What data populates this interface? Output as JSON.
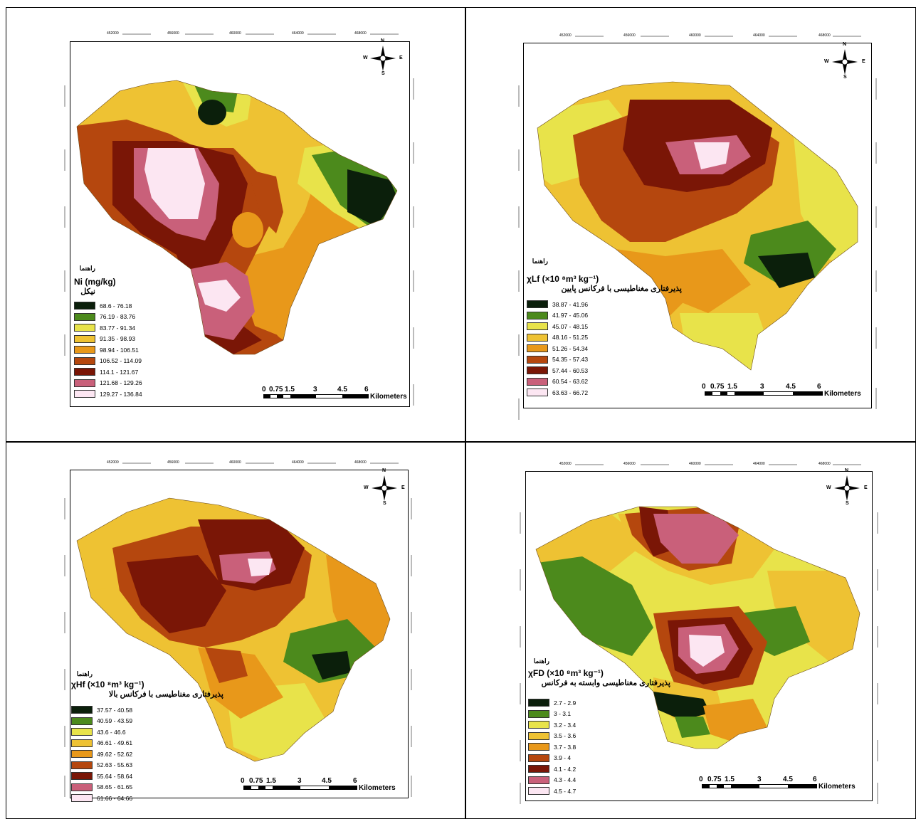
{
  "axis_ticks": {
    "top": [
      "452000",
      "456000",
      "460000",
      "464000",
      "468000"
    ],
    "side": [
      "3658000",
      "3654000",
      "3650000",
      "3646000",
      "3642000",
      "3638000"
    ]
  },
  "compass": {
    "n": "N",
    "s": "S",
    "w": "W",
    "e": "E"
  },
  "scalebar": {
    "labels": [
      "0",
      "0.75",
      "1.5",
      "3",
      "4.5",
      "6"
    ],
    "unit": "Kilometers"
  },
  "panels": [
    {
      "legend_heading": "راهنما",
      "variable": "Ni (mg/kg)",
      "variable_fa": "نیکل",
      "classes": [
        {
          "label": "68.6 - 76.18",
          "color": "#0b1f0b"
        },
        {
          "label": "76.19 - 83.76",
          "color": "#4c8a1c"
        },
        {
          "label": "83.77 - 91.34",
          "color": "#e8e34a"
        },
        {
          "label": "91.35 - 98.93",
          "color": "#eec233"
        },
        {
          "label": "98.94 - 106.51",
          "color": "#e8981a"
        },
        {
          "label": "106.52 - 114.09",
          "color": "#b5470e"
        },
        {
          "label": "114.1 - 121.67",
          "color": "#7a1606"
        },
        {
          "label": "121.68 - 129.26",
          "color": "#c9607a"
        },
        {
          "label": "129.27 - 136.84",
          "color": "#fce6f2"
        }
      ]
    },
    {
      "legend_heading": "راهنما",
      "variable": "χLf (×10 ⁸m³ kg⁻¹)",
      "variable_fa": "پذیرفتاری مغناطیسی با فرکانس پایین",
      "classes": [
        {
          "label": "38.87 - 41.96",
          "color": "#0b1f0b"
        },
        {
          "label": "41.97 - 45.06",
          "color": "#4c8a1c"
        },
        {
          "label": "45.07 - 48.15",
          "color": "#e8e34a"
        },
        {
          "label": "48.16 - 51.25",
          "color": "#eec233"
        },
        {
          "label": "51.26 - 54.34",
          "color": "#e8981a"
        },
        {
          "label": "54.35 - 57.43",
          "color": "#b5470e"
        },
        {
          "label": "57.44 - 60.53",
          "color": "#7a1606"
        },
        {
          "label": "60.54 - 63.62",
          "color": "#c9607a"
        },
        {
          "label": "63.63 - 66.72",
          "color": "#fce6f2"
        }
      ]
    },
    {
      "legend_heading": "راهنما",
      "variable": "χHf (×10 ⁸m³ kg⁻¹)",
      "variable_fa": "پذیرفتاری مغناطیسی با فرکانس بالا",
      "classes": [
        {
          "label": "37.57 - 40.58",
          "color": "#0b1f0b"
        },
        {
          "label": "40.59 - 43.59",
          "color": "#4c8a1c"
        },
        {
          "label": "43.6 - 46.6",
          "color": "#e8e34a"
        },
        {
          "label": "46.61 - 49.61",
          "color": "#eec233"
        },
        {
          "label": "49.62 - 52.62",
          "color": "#e8981a"
        },
        {
          "label": "52.63 - 55.63",
          "color": "#b5470e"
        },
        {
          "label": "55.64 - 58.64",
          "color": "#7a1606"
        },
        {
          "label": "58.65 - 61.65",
          "color": "#c9607a"
        },
        {
          "label": "61.66 - 64.66",
          "color": "#fce6f2"
        }
      ]
    },
    {
      "legend_heading": "راهنما",
      "variable": "χFD (×10 ⁸m³ kg⁻¹)",
      "variable_fa": "پذیرفتاری مغناطیسی وابسته به فرکانس",
      "classes": [
        {
          "label": "2.7 - 2.9",
          "color": "#0b1f0b"
        },
        {
          "label": "3 - 3.1",
          "color": "#4c8a1c"
        },
        {
          "label": "3.2 - 3.4",
          "color": "#e8e34a"
        },
        {
          "label": "3.5 - 3.6",
          "color": "#eec233"
        },
        {
          "label": "3.7 - 3.8",
          "color": "#e8981a"
        },
        {
          "label": "3.9 - 4",
          "color": "#b5470e"
        },
        {
          "label": "4.1 - 4.2",
          "color": "#7a1606"
        },
        {
          "label": "4.3 - 4.4",
          "color": "#c9607a"
        },
        {
          "label": "4.5 - 4.7",
          "color": "#fce6f2"
        }
      ]
    }
  ]
}
